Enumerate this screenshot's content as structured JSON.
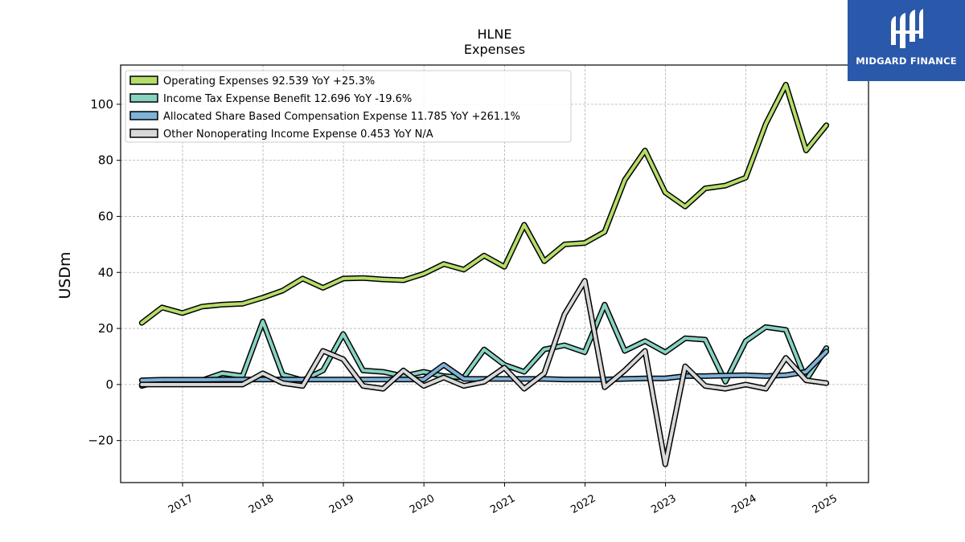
{
  "brand": {
    "name": "MIDGARD FINANCE",
    "bg_color": "#2a58ab",
    "icon": "midgard-logo-icon"
  },
  "chart_data": {
    "type": "line",
    "title": "HLNE",
    "subtitle": "Expenses",
    "xlabel": "",
    "ylabel": "USDm",
    "ylim": [
      -35,
      114
    ],
    "xlim": [
      "2016-03-26",
      "2025-07-10"
    ],
    "yticks": [
      -20,
      0,
      20,
      40,
      60,
      80,
      100
    ],
    "ytick_labels": [
      "−20",
      "0",
      "20",
      "40",
      "60",
      "80",
      "100"
    ],
    "xticks": [
      "2017-01-01",
      "2018-01-01",
      "2019-01-01",
      "2020-01-01",
      "2021-01-01",
      "2022-01-01",
      "2023-01-01",
      "2024-01-01",
      "2025-01-01"
    ],
    "xtick_labels": [
      "2017",
      "2018",
      "2019",
      "2020",
      "2021",
      "2022",
      "2023",
      "2024",
      "2025"
    ],
    "grid": true,
    "legend_position": "upper-left",
    "x": [
      "2016-06-30",
      "2016-09-30",
      "2016-12-31",
      "2017-03-31",
      "2017-06-30",
      "2017-09-30",
      "2017-12-31",
      "2018-03-31",
      "2018-06-30",
      "2018-09-30",
      "2018-12-31",
      "2019-03-31",
      "2019-06-30",
      "2019-09-30",
      "2019-12-31",
      "2020-03-31",
      "2020-06-30",
      "2020-09-30",
      "2020-12-31",
      "2021-03-31",
      "2021-06-30",
      "2021-09-30",
      "2021-12-31",
      "2022-03-31",
      "2022-06-30",
      "2022-09-30",
      "2022-12-31",
      "2023-03-31",
      "2023-06-30",
      "2023-09-30",
      "2023-12-31",
      "2024-03-31",
      "2024-06-30",
      "2024-09-30",
      "2024-12-31"
    ],
    "series": [
      {
        "name": "Operating Expenses",
        "legend_label": "Operating Expenses  92.539 YoY +25.3%",
        "color": "#b5dd6a",
        "values": [
          22.0,
          27.5,
          25.5,
          27.8,
          28.5,
          28.8,
          31.0,
          33.5,
          37.8,
          34.5,
          37.8,
          38.0,
          37.5,
          37.2,
          39.5,
          43.0,
          41.0,
          46.0,
          42.0,
          57.0,
          44.0,
          50.0,
          50.5,
          54.5,
          73.0,
          83.5,
          68.5,
          63.5,
          70.0,
          71.0,
          73.8,
          93.0,
          107.0,
          83.5,
          92.5
        ]
      },
      {
        "name": "Income Tax Expense Benefit",
        "legend_label": "Income Tax Expense Benefit  12.696 YoY -19.6%",
        "color": "#88d2c2",
        "values": [
          -0.5,
          1.5,
          1.5,
          1.5,
          4.0,
          3.0,
          22.5,
          3.5,
          1.5,
          5.0,
          18.0,
          5.0,
          4.5,
          3.0,
          4.5,
          3.0,
          2.5,
          12.5,
          7.0,
          4.5,
          12.5,
          14.0,
          11.5,
          28.5,
          12.0,
          15.5,
          11.5,
          16.5,
          16.0,
          1.0,
          15.5,
          20.5,
          19.5,
          1.5,
          13.0
        ]
      },
      {
        "name": "Allocated Share Based Compensation Expense",
        "legend_label": "Allocated Share Based Compensation Expense  11.785 YoY +261.1%",
        "color": "#7fb2d8",
        "values": [
          1.5,
          1.7,
          1.7,
          1.7,
          1.8,
          1.8,
          1.8,
          1.8,
          1.8,
          1.8,
          1.8,
          1.8,
          1.8,
          1.8,
          1.8,
          7.0,
          2.0,
          2.0,
          2.0,
          2.0,
          2.0,
          1.8,
          1.8,
          1.8,
          2.0,
          2.2,
          2.2,
          3.0,
          3.0,
          3.2,
          3.3,
          3.0,
          3.3,
          4.5,
          11.8
        ]
      },
      {
        "name": "Other Nonoperating Income Expense",
        "legend_label": "Other Nonoperating Income Expense  0.453 YoY N/A",
        "color": "#d8d8d8",
        "values": [
          0.0,
          0.0,
          0.0,
          0.0,
          0.0,
          0.0,
          4.0,
          0.5,
          -0.5,
          12.0,
          9.0,
          -0.5,
          -1.5,
          5.0,
          -0.5,
          2.5,
          -0.5,
          1.0,
          6.0,
          -1.5,
          4.0,
          25.0,
          37.0,
          -1.0,
          5.0,
          12.0,
          -28.5,
          6.5,
          -0.5,
          -1.5,
          0.0,
          -1.5,
          9.5,
          1.5,
          0.5
        ]
      }
    ]
  }
}
